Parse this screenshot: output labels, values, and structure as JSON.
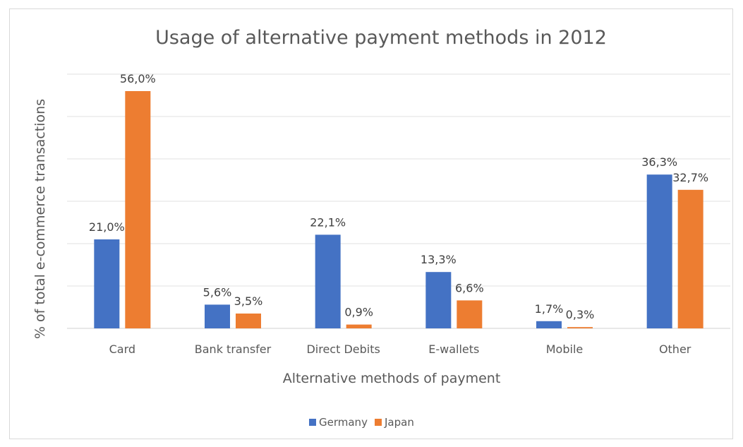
{
  "chart_data": {
    "type": "bar",
    "title": "Usage of alternative payment methods in 2012",
    "xlabel": "Alternative methods of payment",
    "ylabel": "% of total e-commerce transactions",
    "categories": [
      "Card",
      "Bank transfer",
      "Direct Debits",
      "E-wallets",
      "Mobile",
      "Other"
    ],
    "series": [
      {
        "name": "Germany",
        "color": "#4472c4",
        "values": [
          21.0,
          5.6,
          22.1,
          13.3,
          1.7,
          36.3
        ],
        "labels": [
          "21,0%",
          "5,6%",
          "22,1%",
          "13,3%",
          "1,7%",
          "36,3%"
        ]
      },
      {
        "name": "Japan",
        "color": "#ed7d31",
        "values": [
          56.0,
          3.5,
          0.9,
          6.6,
          0.3,
          32.7
        ],
        "labels": [
          "56,0%",
          "3,5%",
          "0,9%",
          "6,6%",
          "0,3%",
          "32,7%"
        ]
      }
    ],
    "ylim": [
      0,
      60
    ],
    "grid": true,
    "legend": "bottom"
  }
}
